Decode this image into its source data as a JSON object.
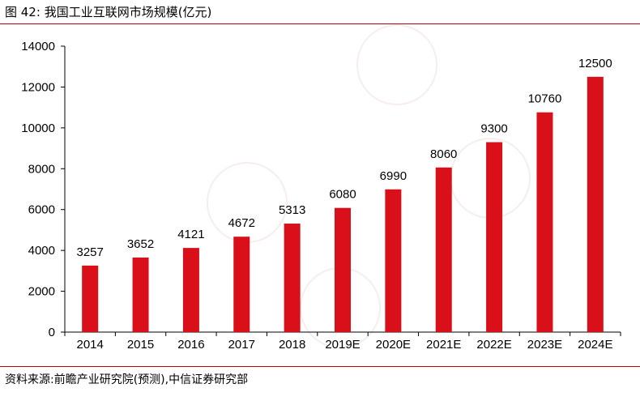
{
  "header": {
    "figure_label": "图 42:",
    "title": "我国工业互联网市场规模(亿元)"
  },
  "source": {
    "text": "资料来源:前瞻产业研究院(预测),中信证券研究部"
  },
  "colors": {
    "bar": "#d9101a",
    "rule": "#c00000",
    "axis": "#000000"
  },
  "chart_data": {
    "type": "bar",
    "title": "我国工业互联网市场规模(亿元)",
    "categories": [
      "2014",
      "2015",
      "2016",
      "2017",
      "2018",
      "2019E",
      "2020E",
      "2021E",
      "2022E",
      "2023E",
      "2024E"
    ],
    "values": [
      3257,
      3652,
      4121,
      4672,
      5313,
      6080,
      6990,
      8060,
      9300,
      10760,
      12500
    ],
    "data_labels": [
      "3257",
      "3652",
      "4121",
      "4672",
      "5313",
      "6080",
      "6990",
      "8060",
      "9300",
      "10760",
      "12500"
    ],
    "ylim": [
      0,
      14000
    ],
    "yticks": [
      "0",
      "2000",
      "4000",
      "6000",
      "8000",
      "10000",
      "12000",
      "14000"
    ],
    "xlabel": "",
    "ylabel": "",
    "grid": false,
    "legend": "none"
  }
}
